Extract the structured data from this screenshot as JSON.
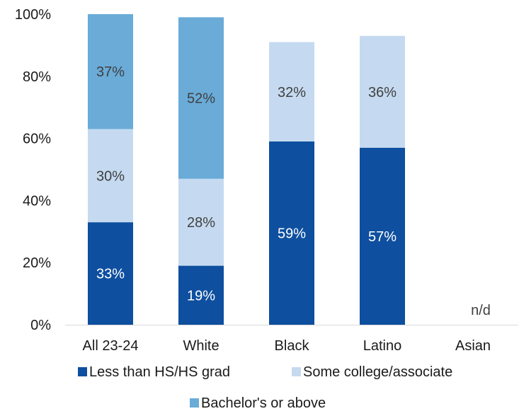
{
  "chart_data": {
    "type": "bar",
    "stacked": true,
    "categories": [
      "All 23-24",
      "White",
      "Black",
      "Latino",
      "Asian"
    ],
    "series": [
      {
        "name": "Less than HS/HS grad",
        "color": "#0e4f9f",
        "label_color": "#ffffff",
        "values": [
          33,
          19,
          59,
          57,
          null
        ],
        "labels": [
          "33%",
          "19%",
          "59%",
          "57%",
          ""
        ]
      },
      {
        "name": "Some college/associate",
        "color": "#c5daf0",
        "label_color": "#404040",
        "values": [
          30,
          28,
          32,
          36,
          null
        ],
        "labels": [
          "30%",
          "28%",
          "32%",
          "36%",
          ""
        ]
      },
      {
        "name": "Bachelor's or above",
        "color": "#6aabd8",
        "label_color": "#404040",
        "values": [
          37,
          52,
          null,
          null,
          null
        ],
        "labels": [
          "37%",
          "52%",
          "",
          "",
          ""
        ]
      }
    ],
    "annotations": [
      {
        "category": "Asian",
        "text": "n/d"
      }
    ],
    "ylim": [
      0,
      100
    ],
    "yticks": [
      0,
      20,
      40,
      60,
      80,
      100
    ],
    "ytick_labels": [
      "0%",
      "20%",
      "40%",
      "60%",
      "80%",
      "100%"
    ],
    "grid": false,
    "legend_position": "bottom",
    "title": "",
    "xlabel": "",
    "ylabel": ""
  }
}
